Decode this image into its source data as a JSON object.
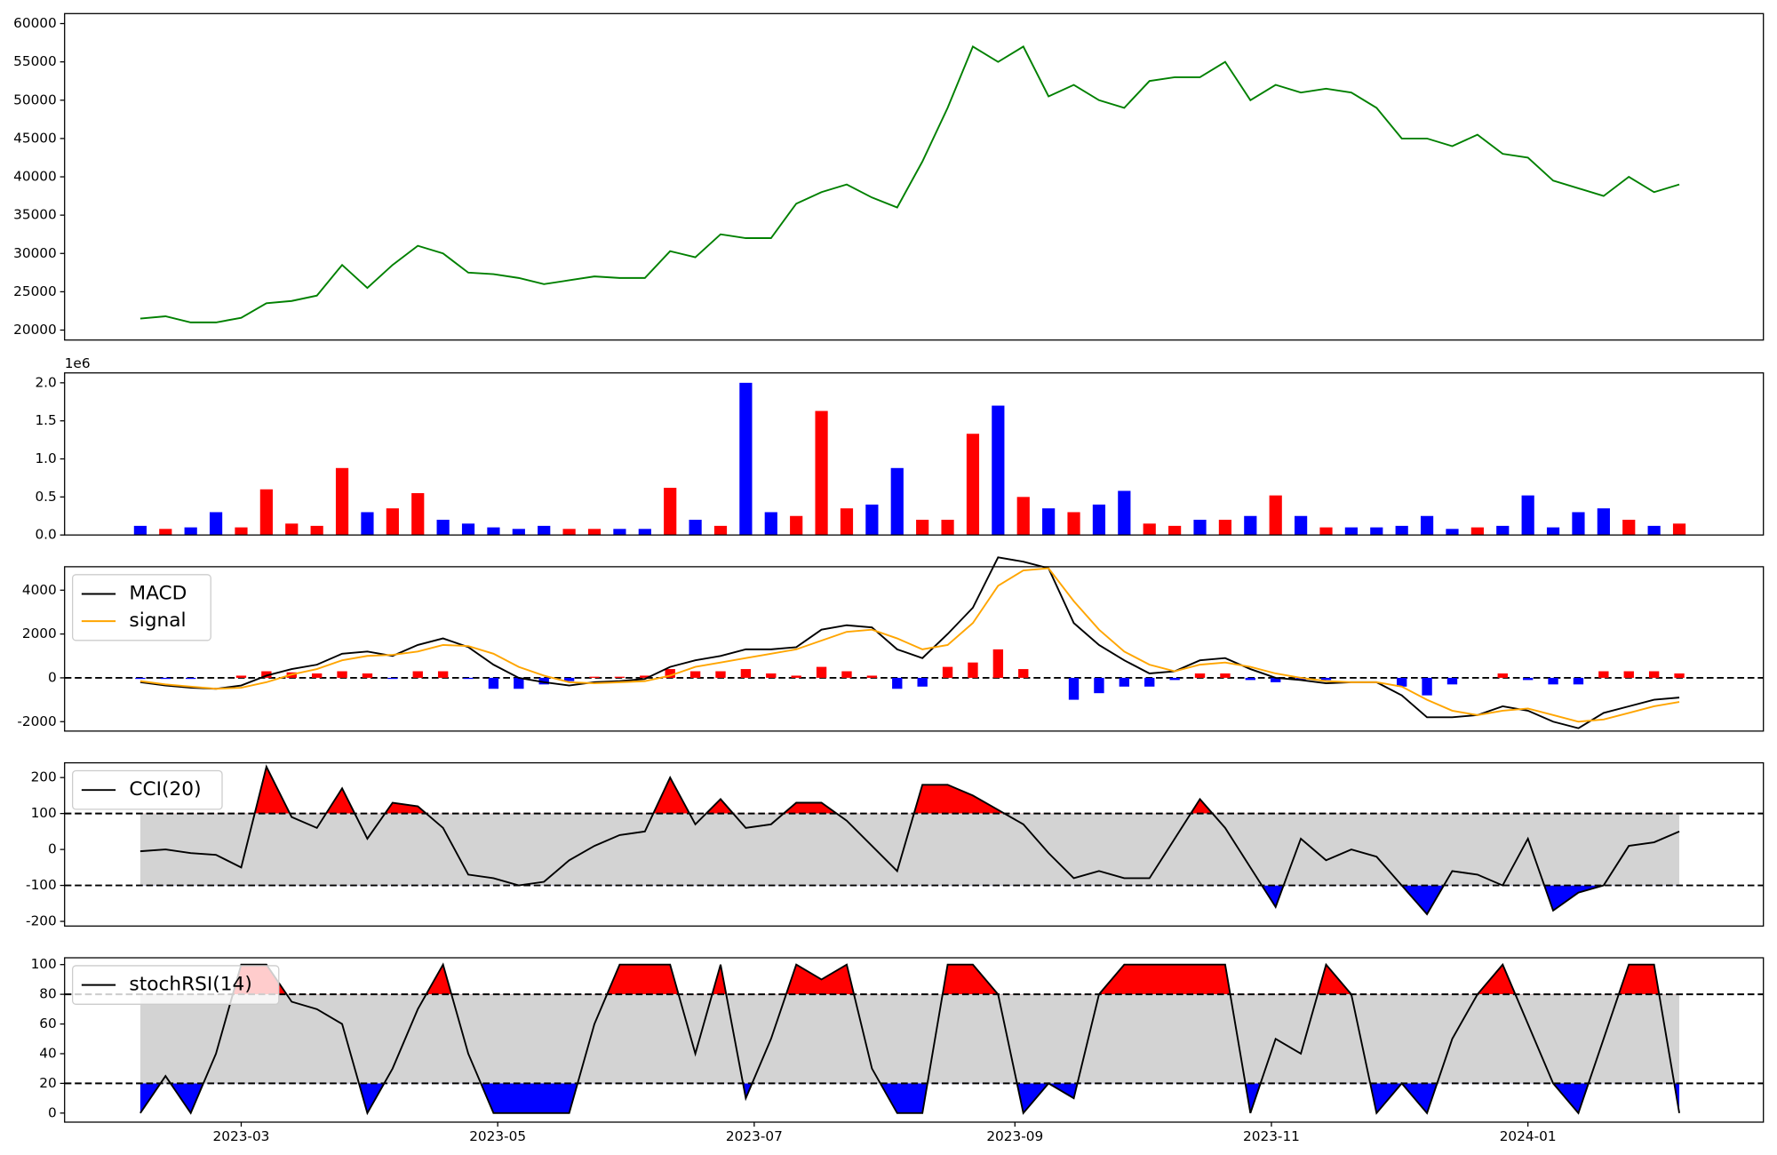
{
  "chart_data": [
    {
      "type": "line",
      "x": [
        35,
        41,
        47,
        53,
        59,
        65,
        71,
        77,
        83,
        89,
        95,
        101,
        107,
        113,
        119,
        125,
        131,
        137,
        143,
        149,
        155,
        161,
        167,
        173,
        179,
        185,
        191,
        197,
        203,
        209,
        215,
        221,
        227,
        233,
        239,
        245,
        251,
        257,
        263,
        269,
        275,
        281,
        287,
        293,
        299,
        305,
        311,
        317,
        323,
        329,
        335,
        341,
        347,
        353,
        359,
        365,
        371,
        377,
        383,
        389,
        395,
        401
      ],
      "xlim": [
        17,
        421
      ],
      "ylim": [
        18700,
        61300
      ],
      "yticks": [
        20000,
        25000,
        30000,
        35000,
        40000,
        45000,
        50000,
        55000,
        60000
      ],
      "series": [
        {
          "color": "green",
          "values": [
            21500,
            21800,
            21000,
            21000,
            21600,
            23500,
            23800,
            24500,
            28500,
            25500,
            28500,
            31000,
            30000,
            27500,
            27300,
            26800,
            26000,
            26500,
            27000,
            26800,
            26800,
            30300,
            29500,
            32500,
            32000,
            32000,
            36500,
            38000,
            39000,
            37300,
            36000,
            42000,
            49000,
            57000,
            55000,
            57000,
            50500,
            52000,
            50000,
            49000,
            52500,
            53000,
            53000,
            55000,
            50000,
            52000,
            51000,
            51500,
            51000,
            49000,
            45000,
            45000,
            44000,
            45500,
            43000,
            42500,
            39500,
            38500,
            37500,
            40000,
            38000,
            39000
          ]
        }
      ]
    },
    {
      "type": "bar",
      "x": [
        35,
        41,
        47,
        53,
        59,
        65,
        71,
        77,
        83,
        89,
        95,
        101,
        107,
        113,
        119,
        125,
        131,
        137,
        143,
        149,
        155,
        161,
        167,
        173,
        179,
        185,
        191,
        197,
        203,
        209,
        215,
        221,
        227,
        233,
        239,
        245,
        251,
        257,
        263,
        269,
        275,
        281,
        287,
        293,
        299,
        305,
        311,
        317,
        323,
        329,
        335,
        341,
        347,
        353,
        359,
        365,
        371,
        377,
        383,
        389,
        395,
        401
      ],
      "xlim": [
        17,
        421
      ],
      "ylim": [
        0,
        2.13
      ],
      "yscale_label": "1e6",
      "yticks": [
        {
          "value": 0,
          "label": "0.0"
        },
        0.5,
        {
          "value": 1,
          "label": "1.0"
        },
        1.5,
        {
          "value": 2,
          "label": "2.0"
        }
      ],
      "values": [
        0.12,
        0.08,
        0.1,
        0.3,
        0.1,
        0.6,
        0.15,
        0.12,
        0.88,
        0.3,
        0.35,
        0.55,
        0.2,
        0.15,
        0.1,
        0.08,
        0.12,
        0.08,
        0.08,
        0.08,
        0.08,
        0.62,
        0.2,
        0.12,
        2.0,
        0.3,
        0.25,
        1.63,
        0.35,
        0.4,
        0.88,
        0.2,
        0.2,
        1.33,
        1.7,
        0.5,
        0.35,
        0.3,
        0.4,
        0.58,
        0.15,
        0.12,
        0.2,
        0.2,
        0.25,
        0.52,
        0.25,
        0.1,
        0.1,
        0.1,
        0.12,
        0.25,
        0.08,
        0.1,
        0.12,
        0.52,
        0.1,
        0.3,
        0.35,
        0.2,
        0.12,
        0.15
      ],
      "colors": [
        "blue",
        "red",
        "blue",
        "blue",
        "red",
        "red",
        "red",
        "red",
        "red",
        "blue",
        "red",
        "red",
        "blue",
        "blue",
        "blue",
        "blue",
        "blue",
        "red",
        "red",
        "blue",
        "blue",
        "red",
        "blue",
        "red",
        "blue",
        "blue",
        "red",
        "red",
        "red",
        "blue",
        "blue",
        "red",
        "red",
        "red",
        "blue",
        "red",
        "blue",
        "red",
        "blue",
        "blue",
        "red",
        "red",
        "blue",
        "red",
        "blue",
        "red",
        "blue",
        "red",
        "blue",
        "blue",
        "blue",
        "blue",
        "blue",
        "red",
        "blue",
        "blue",
        "blue",
        "blue",
        "blue",
        "red",
        "blue",
        "red"
      ]
    },
    {
      "type": "line",
      "x": [
        35,
        41,
        47,
        53,
        59,
        65,
        71,
        77,
        83,
        89,
        95,
        101,
        107,
        113,
        119,
        125,
        131,
        137,
        143,
        149,
        155,
        161,
        167,
        173,
        179,
        185,
        191,
        197,
        203,
        209,
        215,
        221,
        227,
        233,
        239,
        245,
        251,
        257,
        263,
        269,
        275,
        281,
        287,
        293,
        299,
        305,
        311,
        317,
        323,
        329,
        335,
        341,
        347,
        353,
        359,
        365,
        371,
        377,
        383,
        389,
        395,
        401
      ],
      "xlim": [
        17,
        421
      ],
      "ylim": [
        -2430,
        5070
      ],
      "yticks": [
        -2000,
        0,
        2000,
        4000
      ],
      "hlines": [
        0
      ],
      "legend": "upper left",
      "series": [
        {
          "name": "MACD",
          "color": "black",
          "values": [
            -200,
            -350,
            -450,
            -500,
            -350,
            100,
            400,
            600,
            1100,
            1200,
            1000,
            1500,
            1800,
            1400,
            600,
            0,
            -200,
            -350,
            -200,
            -150,
            -50,
            500,
            800,
            1000,
            1300,
            1300,
            1400,
            2200,
            2400,
            2300,
            1300,
            900,
            2000,
            3200,
            5500,
            5300,
            5000,
            2500,
            1500,
            800,
            200,
            300,
            800,
            900,
            400,
            0,
            -100,
            -250,
            -200,
            -200,
            -800,
            -1800,
            -1800,
            -1700,
            -1300,
            -1500,
            -2000,
            -2300,
            -1600,
            -1300,
            -1000,
            -900
          ]
        },
        {
          "name": "signal",
          "color": "orange",
          "values": [
            -150,
            -300,
            -400,
            -500,
            -450,
            -200,
            150,
            400,
            800,
            1000,
            1050,
            1200,
            1500,
            1450,
            1100,
            500,
            100,
            -200,
            -250,
            -200,
            -150,
            100,
            500,
            700,
            900,
            1100,
            1300,
            1700,
            2100,
            2200,
            1800,
            1300,
            1500,
            2500,
            4200,
            4900,
            5000,
            3500,
            2200,
            1200,
            600,
            300,
            600,
            700,
            500,
            200,
            0,
            -150,
            -200,
            -200,
            -400,
            -1000,
            -1500,
            -1700,
            -1500,
            -1400,
            -1700,
            -2000,
            -1900,
            -1600,
            -1300,
            -1100
          ]
        }
      ],
      "histogram": {
        "pos_color": "red",
        "neg_color": "blue",
        "values": [
          -50,
          -50,
          -50,
          0,
          100,
          300,
          250,
          200,
          300,
          200,
          -50,
          300,
          300,
          -50,
          -500,
          -500,
          -300,
          -150,
          50,
          50,
          100,
          400,
          300,
          300,
          400,
          200,
          100,
          500,
          300,
          100,
          -500,
          -400,
          500,
          700,
          1300,
          400,
          0,
          -1000,
          -700,
          -400,
          -400,
          -100,
          200,
          200,
          -100,
          -200,
          -100,
          -100,
          0,
          0,
          -400,
          -800,
          -300,
          0,
          200,
          -100,
          -300,
          -300,
          300,
          300,
          300,
          200
        ]
      }
    },
    {
      "type": "line",
      "x": [
        35,
        41,
        47,
        53,
        59,
        65,
        71,
        77,
        83,
        89,
        95,
        101,
        107,
        113,
        119,
        125,
        131,
        137,
        143,
        149,
        155,
        161,
        167,
        173,
        179,
        185,
        191,
        197,
        203,
        209,
        215,
        221,
        227,
        233,
        239,
        245,
        251,
        257,
        263,
        269,
        275,
        281,
        287,
        293,
        299,
        305,
        311,
        317,
        323,
        329,
        335,
        341,
        347,
        353,
        359,
        365,
        371,
        377,
        383,
        389,
        395,
        401
      ],
      "xlim": [
        17,
        421
      ],
      "ylim": [
        -213,
        241
      ],
      "yticks": [
        -200,
        -100,
        0,
        100,
        200
      ],
      "hlines": [
        -100,
        100
      ],
      "legend": "upper left",
      "band_color": "lightgray",
      "above_color": "red",
      "below_color": "blue",
      "series": [
        {
          "name": "CCI(20)",
          "color": "black",
          "values": [
            -5,
            0,
            -10,
            -15,
            -50,
            230,
            90,
            60,
            170,
            30,
            130,
            120,
            60,
            -70,
            -80,
            -100,
            -90,
            -30,
            10,
            40,
            50,
            200,
            70,
            140,
            60,
            70,
            130,
            130,
            80,
            10,
            -60,
            180,
            180,
            150,
            110,
            70,
            -10,
            -80,
            -60,
            -80,
            -80,
            30,
            140,
            60,
            -50,
            -160,
            30,
            -30,
            0,
            -20,
            -100,
            -180,
            -60,
            -70,
            -100,
            30,
            -170,
            -120,
            -100,
            10,
            20,
            50
          ]
        }
      ]
    },
    {
      "type": "line",
      "x": [
        35,
        41,
        47,
        53,
        59,
        65,
        71,
        77,
        83,
        89,
        95,
        101,
        107,
        113,
        119,
        125,
        131,
        137,
        143,
        149,
        155,
        161,
        167,
        173,
        179,
        185,
        191,
        197,
        203,
        209,
        215,
        221,
        227,
        233,
        239,
        245,
        251,
        257,
        263,
        269,
        275,
        281,
        287,
        293,
        299,
        305,
        311,
        317,
        323,
        329,
        335,
        341,
        347,
        353,
        359,
        365,
        371,
        377,
        383,
        389,
        395,
        401
      ],
      "xlim": [
        17,
        421
      ],
      "ylim": [
        -6.1,
        104.6
      ],
      "xticks": [
        {
          "value": 59,
          "label": "2023-03"
        },
        {
          "value": 120,
          "label": "2023-05"
        },
        {
          "value": 181,
          "label": "2023-07"
        },
        {
          "value": 243,
          "label": "2023-09"
        },
        {
          "value": 304,
          "label": "2023-11"
        },
        {
          "value": 365,
          "label": "2024-01"
        }
      ],
      "yticks": [
        0,
        20,
        40,
        60,
        80,
        100
      ],
      "hlines": [
        20,
        80
      ],
      "legend": "upper left",
      "band_color": "lightgray",
      "above_color": "red",
      "below_color": "blue",
      "series": [
        {
          "name": "stochRSI(14)",
          "color": "black",
          "values": [
            0,
            25,
            0,
            40,
            100,
            100,
            75,
            70,
            60,
            0,
            30,
            70,
            100,
            40,
            0,
            0,
            0,
            0,
            60,
            100,
            100,
            100,
            40,
            100,
            10,
            50,
            100,
            90,
            100,
            30,
            0,
            0,
            100,
            100,
            80,
            0,
            20,
            10,
            80,
            100,
            100,
            100,
            100,
            100,
            0,
            50,
            40,
            100,
            80,
            0,
            20,
            0,
            50,
            80,
            100,
            60,
            20,
            0,
            50,
            100,
            100,
            0
          ]
        }
      ]
    }
  ]
}
